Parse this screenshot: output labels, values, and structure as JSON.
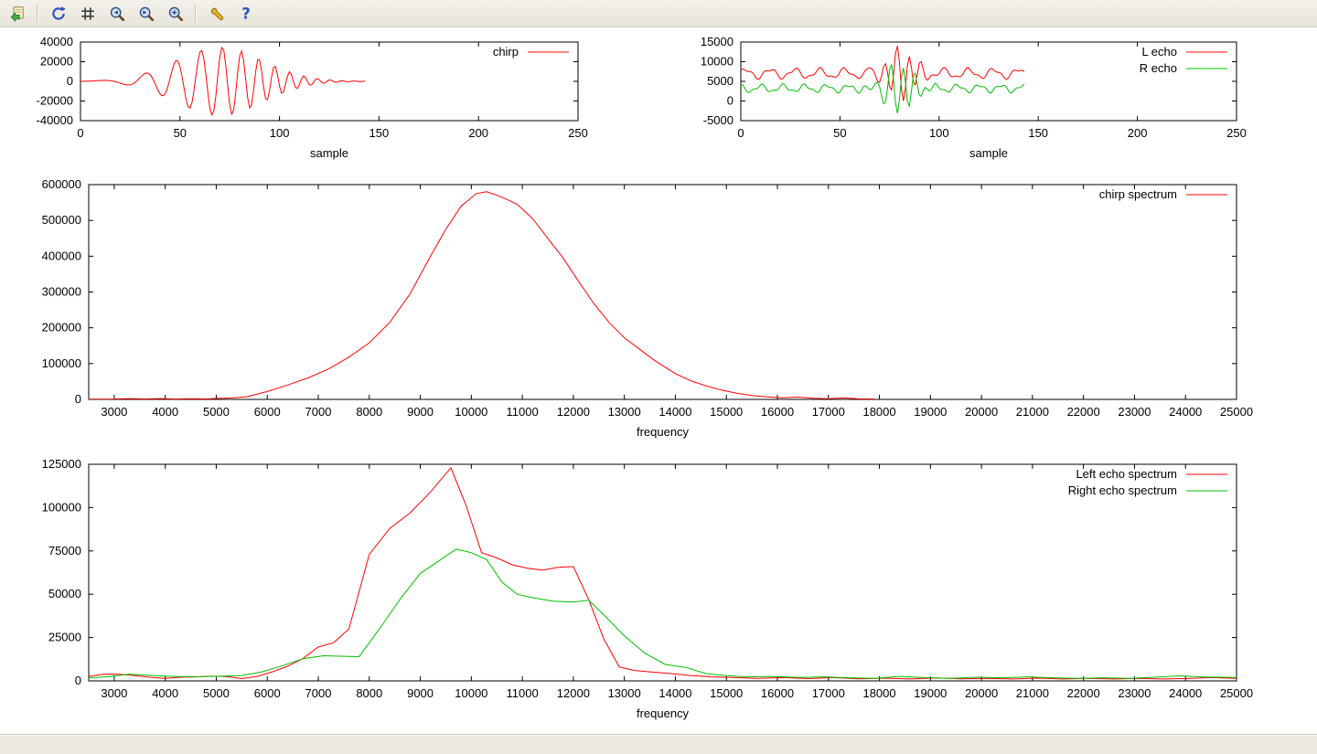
{
  "window": {
    "background": "#ffffff"
  },
  "toolbar": {
    "background": "#ece9e0",
    "buttons": [
      {
        "name": "export",
        "icon": "copy-to-clipboard-icon"
      },
      {
        "name": "replot",
        "icon": "replot-icon"
      },
      {
        "name": "toggle-grid",
        "icon": "grid-icon"
      },
      {
        "name": "zoom-previous",
        "icon": "magnifier-previous-icon"
      },
      {
        "name": "zoom-next",
        "icon": "magnifier-next-icon"
      },
      {
        "name": "autoscale",
        "icon": "magnifier-icon"
      },
      {
        "name": "configure",
        "icon": "wrench-icon"
      },
      {
        "name": "help",
        "icon": "question-mark-icon",
        "glyph": "?"
      }
    ]
  },
  "status_bar": {
    "text": ""
  },
  "colors": {
    "red": "#ff0000",
    "green": "#00c000",
    "axis": "#000000"
  },
  "chart_data": [
    {
      "id": "chirp-wave",
      "type": "line",
      "title": "",
      "xlabel": "sample",
      "ylabel": "",
      "xlim": [
        0,
        250
      ],
      "xticks": [
        0,
        50,
        100,
        150,
        200,
        250
      ],
      "ylim": [
        -40000,
        40000
      ],
      "yticks": [
        -40000,
        -20000,
        0,
        20000,
        40000
      ],
      "grid": false,
      "legend_position": "top-right-inside",
      "series": [
        {
          "name": "chirp",
          "color": "#ff0000",
          "synth": {
            "n": 144,
            "base": 0,
            "waves": [],
            "burst": {
              "amp": 35000,
              "center": 70,
              "sigma": 22,
              "f0": 0.02,
              "f1": 0.18,
              "phase": 0
            }
          }
        }
      ]
    },
    {
      "id": "echoes-wave",
      "type": "line",
      "title": "",
      "xlabel": "sample",
      "ylabel": "",
      "xlim": [
        0,
        250
      ],
      "xticks": [
        0,
        50,
        100,
        150,
        200,
        250
      ],
      "ylim": [
        -5000,
        15000
      ],
      "yticks": [
        -5000,
        0,
        5000,
        10000,
        15000
      ],
      "grid": false,
      "legend_position": "top-right-inside",
      "series": [
        {
          "name": "L echo",
          "color": "#ff0000",
          "synth": {
            "n": 144,
            "base": 7000,
            "waves": [
              {
                "amp": 1100,
                "period": 12.5,
                "phase": 0.4
              },
              {
                "amp": 450,
                "period": 5.7,
                "phase": 1.3
              }
            ],
            "burst": {
              "amp": 6300,
              "center": 80,
              "sigma": 7,
              "f0": 0.05,
              "f1": 0.25,
              "phase": 0
            }
          }
        },
        {
          "name": "R echo",
          "color": "#00c000",
          "synth": {
            "n": 144,
            "base": 3200,
            "waves": [
              {
                "amp": 850,
                "period": 11,
                "phase": 2.0
              },
              {
                "amp": 400,
                "period": 5.1,
                "phase": 0.5
              }
            ],
            "burst": {
              "amp": 6300,
              "center": 79,
              "sigma": 7,
              "f0": 0.05,
              "f1": 0.25,
              "phase": 3.14159
            }
          }
        }
      ]
    },
    {
      "id": "chirp-spectrum",
      "type": "line",
      "title": "",
      "xlabel": "frequency",
      "ylabel": "",
      "xlim": [
        2500,
        25000
      ],
      "xticks": [
        3000,
        4000,
        5000,
        6000,
        7000,
        8000,
        9000,
        10000,
        11000,
        12000,
        13000,
        14000,
        15000,
        16000,
        17000,
        18000,
        19000,
        20000,
        21000,
        22000,
        23000,
        24000,
        25000
      ],
      "ylim": [
        0,
        600000
      ],
      "yticks": [
        0,
        100000,
        200000,
        300000,
        400000,
        500000,
        600000
      ],
      "grid": false,
      "legend_position": "top-right-inside",
      "series": [
        {
          "name": "chirp spectrum",
          "color": "#ff0000",
          "points": [
            [
              2500,
              400
            ],
            [
              3000,
              900
            ],
            [
              3300,
              2200
            ],
            [
              3600,
              1200
            ],
            [
              3900,
              2400
            ],
            [
              4200,
              1100
            ],
            [
              4500,
              1900
            ],
            [
              4800,
              1400
            ],
            [
              5000,
              2600
            ],
            [
              5300,
              4200
            ],
            [
              5600,
              7500
            ],
            [
              6000,
              22000
            ],
            [
              6400,
              40000
            ],
            [
              6800,
              60000
            ],
            [
              7200,
              85000
            ],
            [
              7600,
              118000
            ],
            [
              8000,
              158000
            ],
            [
              8400,
              215000
            ],
            [
              8800,
              295000
            ],
            [
              9200,
              400000
            ],
            [
              9500,
              475000
            ],
            [
              9800,
              540000
            ],
            [
              10100,
              575000
            ],
            [
              10300,
              580000
            ],
            [
              10600,
              565000
            ],
            [
              10900,
              545000
            ],
            [
              11200,
              505000
            ],
            [
              11500,
              450000
            ],
            [
              11800,
              395000
            ],
            [
              12100,
              330000
            ],
            [
              12400,
              268000
            ],
            [
              12700,
              215000
            ],
            [
              13000,
              172000
            ],
            [
              13300,
              140000
            ],
            [
              13600,
              108000
            ],
            [
              14000,
              72000
            ],
            [
              14300,
              52000
            ],
            [
              14600,
              38000
            ],
            [
              14900,
              26000
            ],
            [
              15200,
              17000
            ],
            [
              15500,
              11000
            ],
            [
              15800,
              7000
            ],
            [
              16100,
              4500
            ],
            [
              16400,
              6500
            ],
            [
              16700,
              3000
            ],
            [
              17000,
              2000
            ],
            [
              17300,
              4200
            ],
            [
              17600,
              1500
            ],
            [
              17900,
              900
            ]
          ]
        }
      ]
    },
    {
      "id": "echo-spectra",
      "type": "line",
      "title": "",
      "xlabel": "frequency",
      "ylabel": "",
      "xlim": [
        2500,
        25000
      ],
      "xticks": [
        3000,
        4000,
        5000,
        6000,
        7000,
        8000,
        9000,
        10000,
        11000,
        12000,
        13000,
        14000,
        15000,
        16000,
        17000,
        18000,
        19000,
        20000,
        21000,
        22000,
        23000,
        24000,
        25000
      ],
      "ylim": [
        0,
        125000
      ],
      "yticks": [
        0,
        25000,
        50000,
        75000,
        100000,
        125000
      ],
      "grid": false,
      "legend_position": "top-right-inside",
      "series": [
        {
          "name": "Left echo spectrum",
          "color": "#ff0000",
          "points": [
            [
              2500,
              2600
            ],
            [
              2800,
              3900
            ],
            [
              3100,
              3800
            ],
            [
              3400,
              3000
            ],
            [
              3700,
              2100
            ],
            [
              4000,
              1400
            ],
            [
              4300,
              2100
            ],
            [
              4600,
              2300
            ],
            [
              4900,
              2700
            ],
            [
              5200,
              2500
            ],
            [
              5500,
              1300
            ],
            [
              5800,
              2600
            ],
            [
              6100,
              5200
            ],
            [
              6400,
              8500
            ],
            [
              6700,
              13000
            ],
            [
              7000,
              19500
            ],
            [
              7300,
              22000
            ],
            [
              7600,
              30000
            ],
            [
              8000,
              73000
            ],
            [
              8400,
              88000
            ],
            [
              8800,
              97000
            ],
            [
              9200,
              109000
            ],
            [
              9600,
              123000
            ],
            [
              9900,
              101000
            ],
            [
              10200,
              74000
            ],
            [
              10500,
              71000
            ],
            [
              10800,
              67000
            ],
            [
              11100,
              65000
            ],
            [
              11400,
              64000
            ],
            [
              11700,
              65500
            ],
            [
              12000,
              66000
            ],
            [
              12300,
              47000
            ],
            [
              12600,
              24000
            ],
            [
              12900,
              8000
            ],
            [
              13200,
              6000
            ],
            [
              13500,
              5200
            ],
            [
              13900,
              4200
            ],
            [
              14300,
              3100
            ],
            [
              14700,
              2300
            ],
            [
              15100,
              2000
            ],
            [
              15600,
              1400
            ],
            [
              16100,
              1900
            ],
            [
              16600,
              1300
            ],
            [
              17100,
              1900
            ],
            [
              17600,
              1200
            ],
            [
              18100,
              1600
            ],
            [
              18600,
              1100
            ],
            [
              19100,
              1700
            ],
            [
              19600,
              1200
            ],
            [
              20100,
              1500
            ],
            [
              20600,
              1100
            ],
            [
              21100,
              1600
            ],
            [
              21600,
              1100
            ],
            [
              22100,
              1400
            ],
            [
              22600,
              1100
            ],
            [
              23100,
              1500
            ],
            [
              23600,
              1100
            ],
            [
              24100,
              1500
            ],
            [
              24500,
              1900
            ],
            [
              25000,
              1400
            ]
          ]
        },
        {
          "name": "Right echo spectrum",
          "color": "#00c000",
          "points": [
            [
              2500,
              1700
            ],
            [
              2900,
              2400
            ],
            [
              3300,
              3900
            ],
            [
              3600,
              3400
            ],
            [
              3900,
              2900
            ],
            [
              4300,
              2400
            ],
            [
              4700,
              2400
            ],
            [
              5100,
              2700
            ],
            [
              5500,
              3100
            ],
            [
              5900,
              5200
            ],
            [
              6300,
              8800
            ],
            [
              6700,
              12800
            ],
            [
              7100,
              14500
            ],
            [
              7500,
              14200
            ],
            [
              7800,
              14000
            ],
            [
              8200,
              30000
            ],
            [
              8600,
              47000
            ],
            [
              9000,
              62000
            ],
            [
              9400,
              70000
            ],
            [
              9700,
              76000
            ],
            [
              10000,
              74000
            ],
            [
              10300,
              70000
            ],
            [
              10600,
              57000
            ],
            [
              10900,
              50000
            ],
            [
              11200,
              48000
            ],
            [
              11600,
              46000
            ],
            [
              12000,
              45500
            ],
            [
              12300,
              46500
            ],
            [
              12600,
              38000
            ],
            [
              13000,
              26000
            ],
            [
              13400,
              16000
            ],
            [
              13800,
              9500
            ],
            [
              14200,
              7800
            ],
            [
              14600,
              4200
            ],
            [
              15000,
              3000
            ],
            [
              15400,
              2300
            ],
            [
              15900,
              2600
            ],
            [
              16400,
              2000
            ],
            [
              16900,
              2300
            ],
            [
              17400,
              1800
            ],
            [
              17900,
              1500
            ],
            [
              18400,
              2600
            ],
            [
              18900,
              1900
            ],
            [
              19400,
              1500
            ],
            [
              19900,
              2100
            ],
            [
              20400,
              1800
            ],
            [
              20900,
              2300
            ],
            [
              21400,
              1800
            ],
            [
              21900,
              1500
            ],
            [
              22400,
              1800
            ],
            [
              22900,
              1500
            ],
            [
              23400,
              2100
            ],
            [
              23900,
              2900
            ],
            [
              24400,
              2200
            ],
            [
              25000,
              2000
            ]
          ]
        }
      ]
    }
  ]
}
